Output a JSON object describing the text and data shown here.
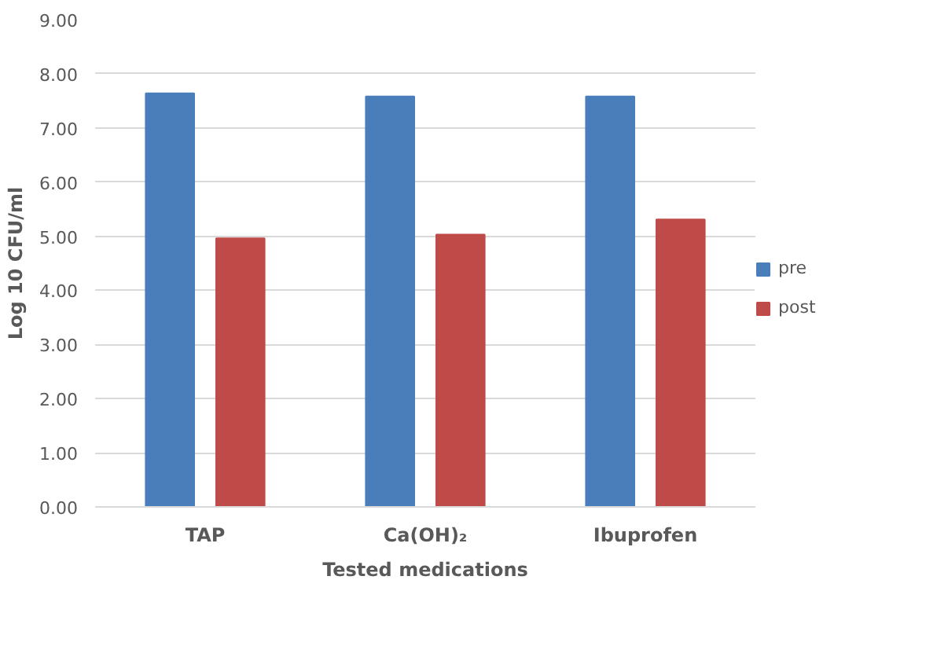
{
  "chart_data": {
    "type": "bar",
    "xlabel": "Tested medications",
    "ylabel": "Log 10 CFU/ml",
    "categories": [
      "TAP",
      "Ca(OH)₂",
      "Ibuprofen"
    ],
    "series": [
      {
        "name": "pre",
        "color": "#4a7ebb",
        "values": [
          7.64,
          7.58,
          7.58
        ]
      },
      {
        "name": "post",
        "color": "#be4b48",
        "values": [
          4.96,
          5.03,
          5.31
        ]
      }
    ],
    "ylim": [
      0,
      9
    ],
    "yticks": [
      {
        "value": 0,
        "label": "0.00"
      },
      {
        "value": 1,
        "label": "1.00"
      },
      {
        "value": 2,
        "label": "2.00"
      },
      {
        "value": 3,
        "label": "3.00"
      },
      {
        "value": 4,
        "label": "4.00"
      },
      {
        "value": 5,
        "label": "5.00"
      },
      {
        "value": 6,
        "label": "6.00"
      },
      {
        "value": 7,
        "label": "7.00"
      },
      {
        "value": 8,
        "label": "8.00"
      },
      {
        "value": 9,
        "label": "9.00"
      }
    ],
    "grid": "y",
    "legend": "right"
  }
}
